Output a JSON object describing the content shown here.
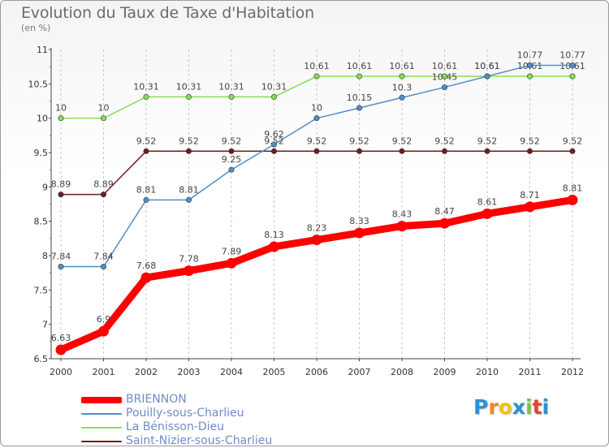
{
  "header": {
    "title": "Evolution du Taux de Taxe d'Habitation",
    "subtitle": "(en %)"
  },
  "chart_data": {
    "type": "line",
    "title": "Evolution du Taux de Taxe d'Habitation",
    "subtitle": "(en %)",
    "x": [
      "2000",
      "2001",
      "2002",
      "2003",
      "2004",
      "2005",
      "2006",
      "2007",
      "2008",
      "2009",
      "2010",
      "2011",
      "2012"
    ],
    "ylim": [
      6.5,
      11
    ],
    "yticks": [
      "6.5",
      "7",
      "7.5",
      "8",
      "8.5",
      "9",
      "9.5",
      "10",
      "10.5",
      "11"
    ],
    "grid": "vertical dashed",
    "legend": "bottom-left",
    "series": [
      {
        "name": "BRIENNON",
        "color": "#ff0000",
        "values": [
          6.63,
          6.9,
          7.68,
          7.78,
          7.89,
          8.13,
          8.23,
          8.33,
          8.43,
          8.47,
          8.61,
          8.71,
          8.81
        ],
        "labels": [
          "6.63",
          "6.9",
          "7.68",
          "7.78",
          "7.89",
          "8.13",
          "8.23",
          "8.33",
          "8.43",
          "8.47",
          "8.61",
          "8.71",
          "8.81"
        ]
      },
      {
        "name": "Pouilly-sous-Charlieu",
        "color": "#4f8fc9",
        "values": [
          7.84,
          7.84,
          8.81,
          8.81,
          9.25,
          9.62,
          10,
          10.15,
          10.3,
          10.45,
          10.61,
          10.77,
          10.77
        ],
        "labels": [
          "7.84",
          "7.84",
          "8.81",
          "8.81",
          "9.25",
          "9.62",
          "10",
          "10.15",
          "10.3",
          "10.45",
          "10.61",
          "10.77",
          "10.77"
        ]
      },
      {
        "name": "La Bénisson-Dieu",
        "color": "#88dd55",
        "values": [
          10,
          10,
          10.31,
          10.31,
          10.31,
          10.31,
          10.61,
          10.61,
          10.61,
          10.61,
          10.61,
          10.61,
          10.61
        ],
        "labels": [
          "10",
          "10",
          "10.31",
          "10.31",
          "10.31",
          "10.31",
          "10.61",
          "10.61",
          "10.61",
          "10.61",
          "10.61",
          "10.61",
          "10.61"
        ]
      },
      {
        "name": "Saint-Nizier-sous-Charlieu",
        "color": "#6b1f1f",
        "values": [
          8.89,
          8.89,
          9.52,
          9.52,
          9.52,
          9.52,
          9.52,
          9.52,
          9.52,
          9.52,
          9.52,
          9.52,
          9.52
        ],
        "labels": [
          "8.89",
          "8.89",
          "9.52",
          "9.52",
          "9.52",
          "9.52",
          "9.52",
          "9.52",
          "9.52",
          "9.52",
          "9.52",
          "9.52",
          "9.52"
        ]
      }
    ]
  },
  "logo": {
    "text": "Proxiti",
    "colors": [
      "#2e8fd6",
      "#f08a1c",
      "#f3c316",
      "#2e8fd6",
      "#7cc242",
      "#e8402e",
      "#2e8fd6"
    ]
  }
}
